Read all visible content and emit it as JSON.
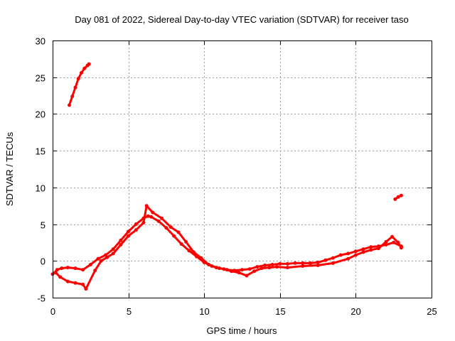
{
  "chart_data": {
    "type": "scatter",
    "title": "Day 081 of 2022, Sidereal Day-to-day VTEC variation (SDTVAR) for receiver taso",
    "xlabel": "GPS time / hours",
    "ylabel": "SDTVAR / TECUs",
    "xlim": [
      0,
      25
    ],
    "ylim": [
      -5,
      30
    ],
    "xticks": [
      0,
      5,
      10,
      15,
      20,
      25
    ],
    "yticks": [
      -5,
      0,
      5,
      10,
      15,
      20,
      25,
      30
    ],
    "grid": true,
    "legend": "none",
    "color": "#ff0000",
    "series": [
      {
        "name": "main-trace-a",
        "x": [
          0.0,
          0.3,
          0.6,
          1.0,
          1.5,
          2.0,
          2.5,
          3.0,
          3.5,
          4.0,
          4.5,
          5.0,
          5.5,
          6.0,
          6.3,
          6.5,
          7.0,
          7.5,
          8.0,
          8.5,
          9.0,
          9.5,
          10.0,
          10.5,
          11.0,
          11.5,
          12.0,
          12.5,
          13.0,
          13.5,
          14.0,
          14.5,
          15.0,
          15.5,
          16.0,
          16.5,
          17.0,
          17.5,
          18.0,
          18.5,
          19.0,
          19.5,
          20.0,
          20.5,
          21.0,
          21.5,
          22.0,
          22.5,
          23.0
        ],
        "y": [
          -1.8,
          -1.2,
          -1.0,
          -0.9,
          -1.0,
          -1.2,
          -0.5,
          0.3,
          0.8,
          1.6,
          2.8,
          4.0,
          5.0,
          5.8,
          6.1,
          6.0,
          5.4,
          4.5,
          3.4,
          2.3,
          1.4,
          0.6,
          -0.2,
          -0.7,
          -1.0,
          -1.2,
          -1.3,
          -1.2,
          -1.1,
          -0.8,
          -0.6,
          -0.5,
          -0.4,
          -0.4,
          -0.3,
          -0.3,
          -0.3,
          -0.2,
          0.1,
          0.4,
          0.8,
          1.0,
          1.3,
          1.6,
          1.9,
          2.0,
          2.2,
          2.5,
          2.0
        ]
      },
      {
        "name": "main-trace-b",
        "x": [
          0.2,
          0.5,
          1.0,
          1.5,
          2.0,
          2.2,
          2.8,
          3.2,
          3.6,
          4.0,
          4.5,
          5.0,
          5.5,
          6.0,
          6.2,
          6.6,
          7.2,
          7.8,
          8.3,
          8.8,
          9.3,
          9.8,
          10.3,
          10.8,
          11.3,
          11.8,
          12.3,
          12.8,
          13.3,
          13.8,
          14.3,
          14.8,
          15.5,
          16.5,
          17.5,
          18.5,
          19.5,
          20.0,
          20.5,
          21.0,
          21.5,
          22.0,
          22.4,
          22.8,
          23.0
        ],
        "y": [
          -1.6,
          -2.2,
          -2.8,
          -3.0,
          -3.2,
          -3.8,
          -1.3,
          0.0,
          0.5,
          1.0,
          2.2,
          3.4,
          4.2,
          5.2,
          7.5,
          6.6,
          5.8,
          4.6,
          3.9,
          2.6,
          1.2,
          0.4,
          -0.5,
          -0.9,
          -1.1,
          -1.4,
          -1.6,
          -2.0,
          -1.4,
          -1.0,
          -0.9,
          -0.8,
          -0.9,
          -0.7,
          -0.6,
          -0.3,
          0.3,
          0.8,
          1.2,
          1.5,
          1.7,
          2.6,
          3.3,
          2.5,
          1.8
        ]
      },
      {
        "name": "early-high-segment",
        "x": [
          1.1,
          1.3,
          1.5,
          1.7,
          1.9,
          2.1,
          2.3,
          2.4
        ],
        "y": [
          21.2,
          22.4,
          23.6,
          24.8,
          25.6,
          26.2,
          26.6,
          26.8
        ]
      },
      {
        "name": "late-high-segment",
        "x": [
          22.6,
          22.8,
          23.0
        ],
        "y": [
          8.4,
          8.7,
          8.9
        ]
      }
    ]
  }
}
